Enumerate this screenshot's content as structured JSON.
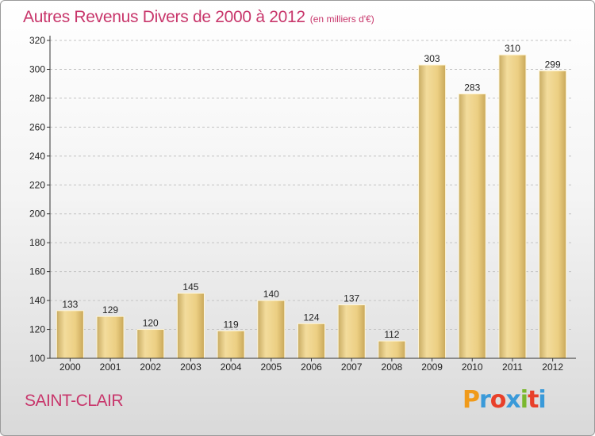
{
  "page": {
    "title": "Autres Revenus Divers de 2000 à 2012",
    "unit": "(en milliers d'€)",
    "city": "SAINT-CLAIR",
    "logo": {
      "letters": [
        "P",
        "r",
        "o",
        "x",
        "i",
        "t",
        "i"
      ],
      "colors": [
        "#f09a1a",
        "#3a9ad9",
        "#e8402a",
        "#3a9ad9",
        "#7ab82e",
        "#e8402a",
        "#3a9ad9"
      ]
    }
  },
  "chart_data": {
    "type": "bar",
    "categories": [
      "2000",
      "2001",
      "2002",
      "2003",
      "2004",
      "2005",
      "2006",
      "2007",
      "2008",
      "2009",
      "2010",
      "2011",
      "2012"
    ],
    "values": [
      133,
      129,
      120,
      145,
      119,
      140,
      124,
      137,
      112,
      303,
      283,
      310,
      299
    ],
    "ylim": [
      100,
      320
    ],
    "yticks": [
      "100",
      "120",
      "140",
      "160",
      "180",
      "200",
      "220",
      "240",
      "260",
      "280",
      "300",
      "320"
    ],
    "grid": true,
    "bar_color": "#e8cc86"
  }
}
